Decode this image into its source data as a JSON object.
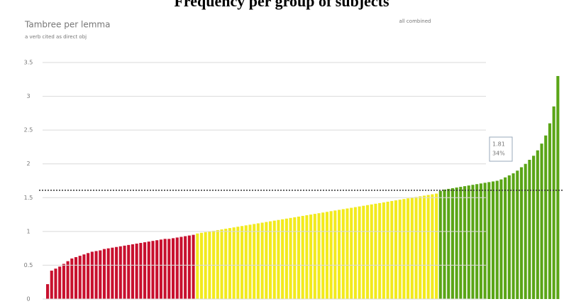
{
  "chart_data": {
    "type": "bar",
    "title": "Frequency per group of subjects",
    "subtitle": "Tambree per lemma",
    "note": "a verb cited as direct obj",
    "legend_text": "all combined",
    "tooltip": [
      "1.81",
      "34%"
    ],
    "ylim": [
      0,
      3.5
    ],
    "yticks": [
      0,
      0.5,
      1,
      1.5,
      2,
      2.5,
      3,
      3.5
    ],
    "grid": true,
    "reference": 1.61,
    "series": [
      {
        "color": "#c8102e",
        "values": [
          0.22,
          0.42,
          0.45,
          0.48,
          0.52,
          0.56,
          0.6,
          0.62,
          0.64,
          0.66,
          0.68,
          0.7,
          0.71,
          0.72,
          0.74,
          0.75,
          0.76,
          0.77,
          0.78,
          0.79,
          0.8,
          0.81,
          0.82,
          0.83,
          0.84,
          0.85,
          0.86,
          0.87,
          0.88,
          0.89,
          0.89,
          0.9,
          0.91,
          0.92,
          0.93,
          0.94,
          0.95
        ]
      },
      {
        "color": "#f2ea1d",
        "values": [
          0.97,
          0.98,
          0.99,
          1.0,
          1.01,
          1.02,
          1.03,
          1.04,
          1.05,
          1.06,
          1.07,
          1.08,
          1.09,
          1.1,
          1.11,
          1.12,
          1.13,
          1.14,
          1.15,
          1.16,
          1.17,
          1.18,
          1.19,
          1.2,
          1.21,
          1.22,
          1.23,
          1.24,
          1.25,
          1.26,
          1.27,
          1.28,
          1.29,
          1.3,
          1.31,
          1.32,
          1.33,
          1.34,
          1.35,
          1.36,
          1.37,
          1.38,
          1.39,
          1.4,
          1.41,
          1.42,
          1.43,
          1.44,
          1.45,
          1.46,
          1.47,
          1.48,
          1.49,
          1.5,
          1.51,
          1.52,
          1.53,
          1.54,
          1.55,
          1.56
        ]
      },
      {
        "color": "#5aa516",
        "values": [
          1.6,
          1.62,
          1.63,
          1.64,
          1.65,
          1.66,
          1.67,
          1.68,
          1.69,
          1.7,
          1.71,
          1.72,
          1.73,
          1.74,
          1.75,
          1.77,
          1.8,
          1.83,
          1.86,
          1.9,
          1.95,
          2.0,
          2.06,
          2.12,
          2.2,
          2.3,
          2.42,
          2.6,
          2.85,
          3.3
        ]
      }
    ]
  }
}
